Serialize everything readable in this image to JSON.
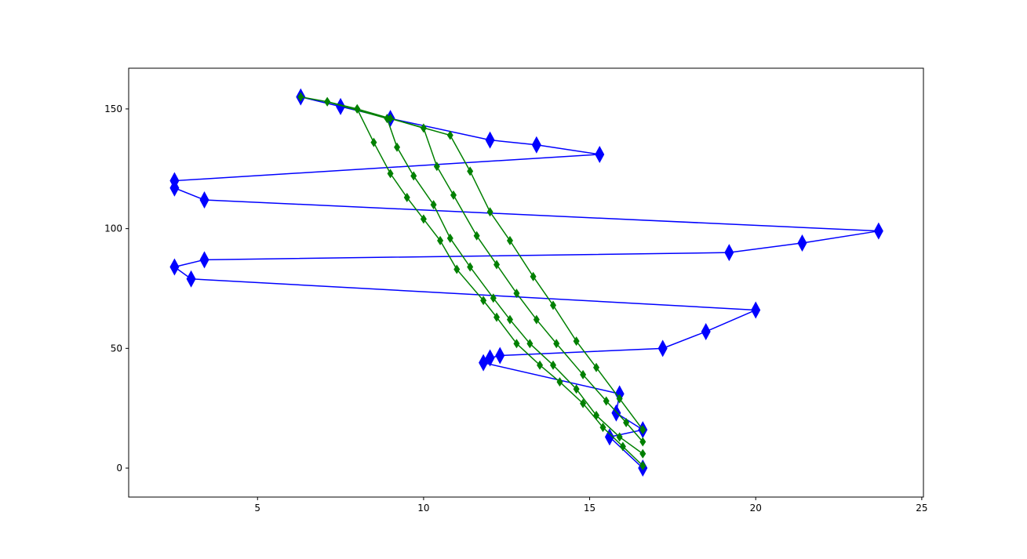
{
  "chart_data": {
    "type": "line",
    "xlim": [
      1.12,
      25.05
    ],
    "ylim": [
      -12.1,
      167.0
    ],
    "xticks": [
      5,
      10,
      15,
      20,
      25
    ],
    "yticks": [
      0,
      50,
      100,
      150
    ],
    "series": [
      {
        "color": "#0000ff",
        "marker": "diamond",
        "x": [
          6.3,
          7.5,
          9,
          12,
          13.4,
          15.3,
          2.5,
          2.5,
          3.4,
          23.7,
          21.4,
          19.2,
          3.4,
          2.5,
          3,
          20,
          18.5,
          17.2,
          12.3,
          12,
          11.8,
          15.9,
          15.8,
          16.6,
          15.6,
          16.6
        ],
        "values": [
          155,
          151,
          146,
          137,
          135,
          131,
          120,
          117,
          112,
          99,
          94,
          90,
          87,
          84,
          79,
          66,
          57,
          50,
          47,
          46,
          44,
          31,
          23,
          16,
          13,
          0
        ]
      },
      {
        "color": "#008000",
        "marker": "small-diamond",
        "x": [
          6.3,
          7.1,
          8,
          8.5,
          9,
          9.5,
          10,
          10.5,
          11,
          11.8,
          12.2,
          12.8,
          13.5,
          14.1,
          14.8,
          15.4,
          16,
          16.6
        ],
        "values": [
          155,
          153,
          150,
          136,
          123,
          113,
          104,
          95,
          83,
          70,
          63,
          52,
          43,
          36,
          27,
          17,
          9,
          1
        ]
      },
      {
        "color": "#008000",
        "marker": "small-diamond",
        "x": [
          7.1,
          8.9,
          9.2,
          9.7,
          10.3,
          10.8,
          11.4,
          12.1,
          12.6,
          13.2,
          13.9,
          14.6,
          15.2,
          15.9,
          16.6
        ],
        "values": [
          153,
          146,
          134,
          122,
          110,
          96,
          84,
          71,
          62,
          52,
          43,
          33,
          22,
          13,
          6
        ]
      },
      {
        "color": "#008000",
        "marker": "small-diamond",
        "x": [
          8,
          10,
          10.4,
          10.9,
          11.6,
          12.2,
          12.8,
          13.4,
          14,
          14.8,
          15.5,
          16.1,
          16.6
        ],
        "values": [
          150,
          142,
          126,
          114,
          97,
          85,
          73,
          62,
          52,
          39,
          28,
          19,
          11
        ]
      },
      {
        "color": "#008000",
        "marker": "small-diamond",
        "x": [
          9,
          10.8,
          11.4,
          12,
          12.6,
          13.3,
          13.9,
          14.6,
          15.2,
          15.9,
          16.6
        ],
        "values": [
          146,
          139,
          124,
          107,
          95,
          80,
          68,
          53,
          42,
          29,
          16
        ]
      }
    ]
  }
}
